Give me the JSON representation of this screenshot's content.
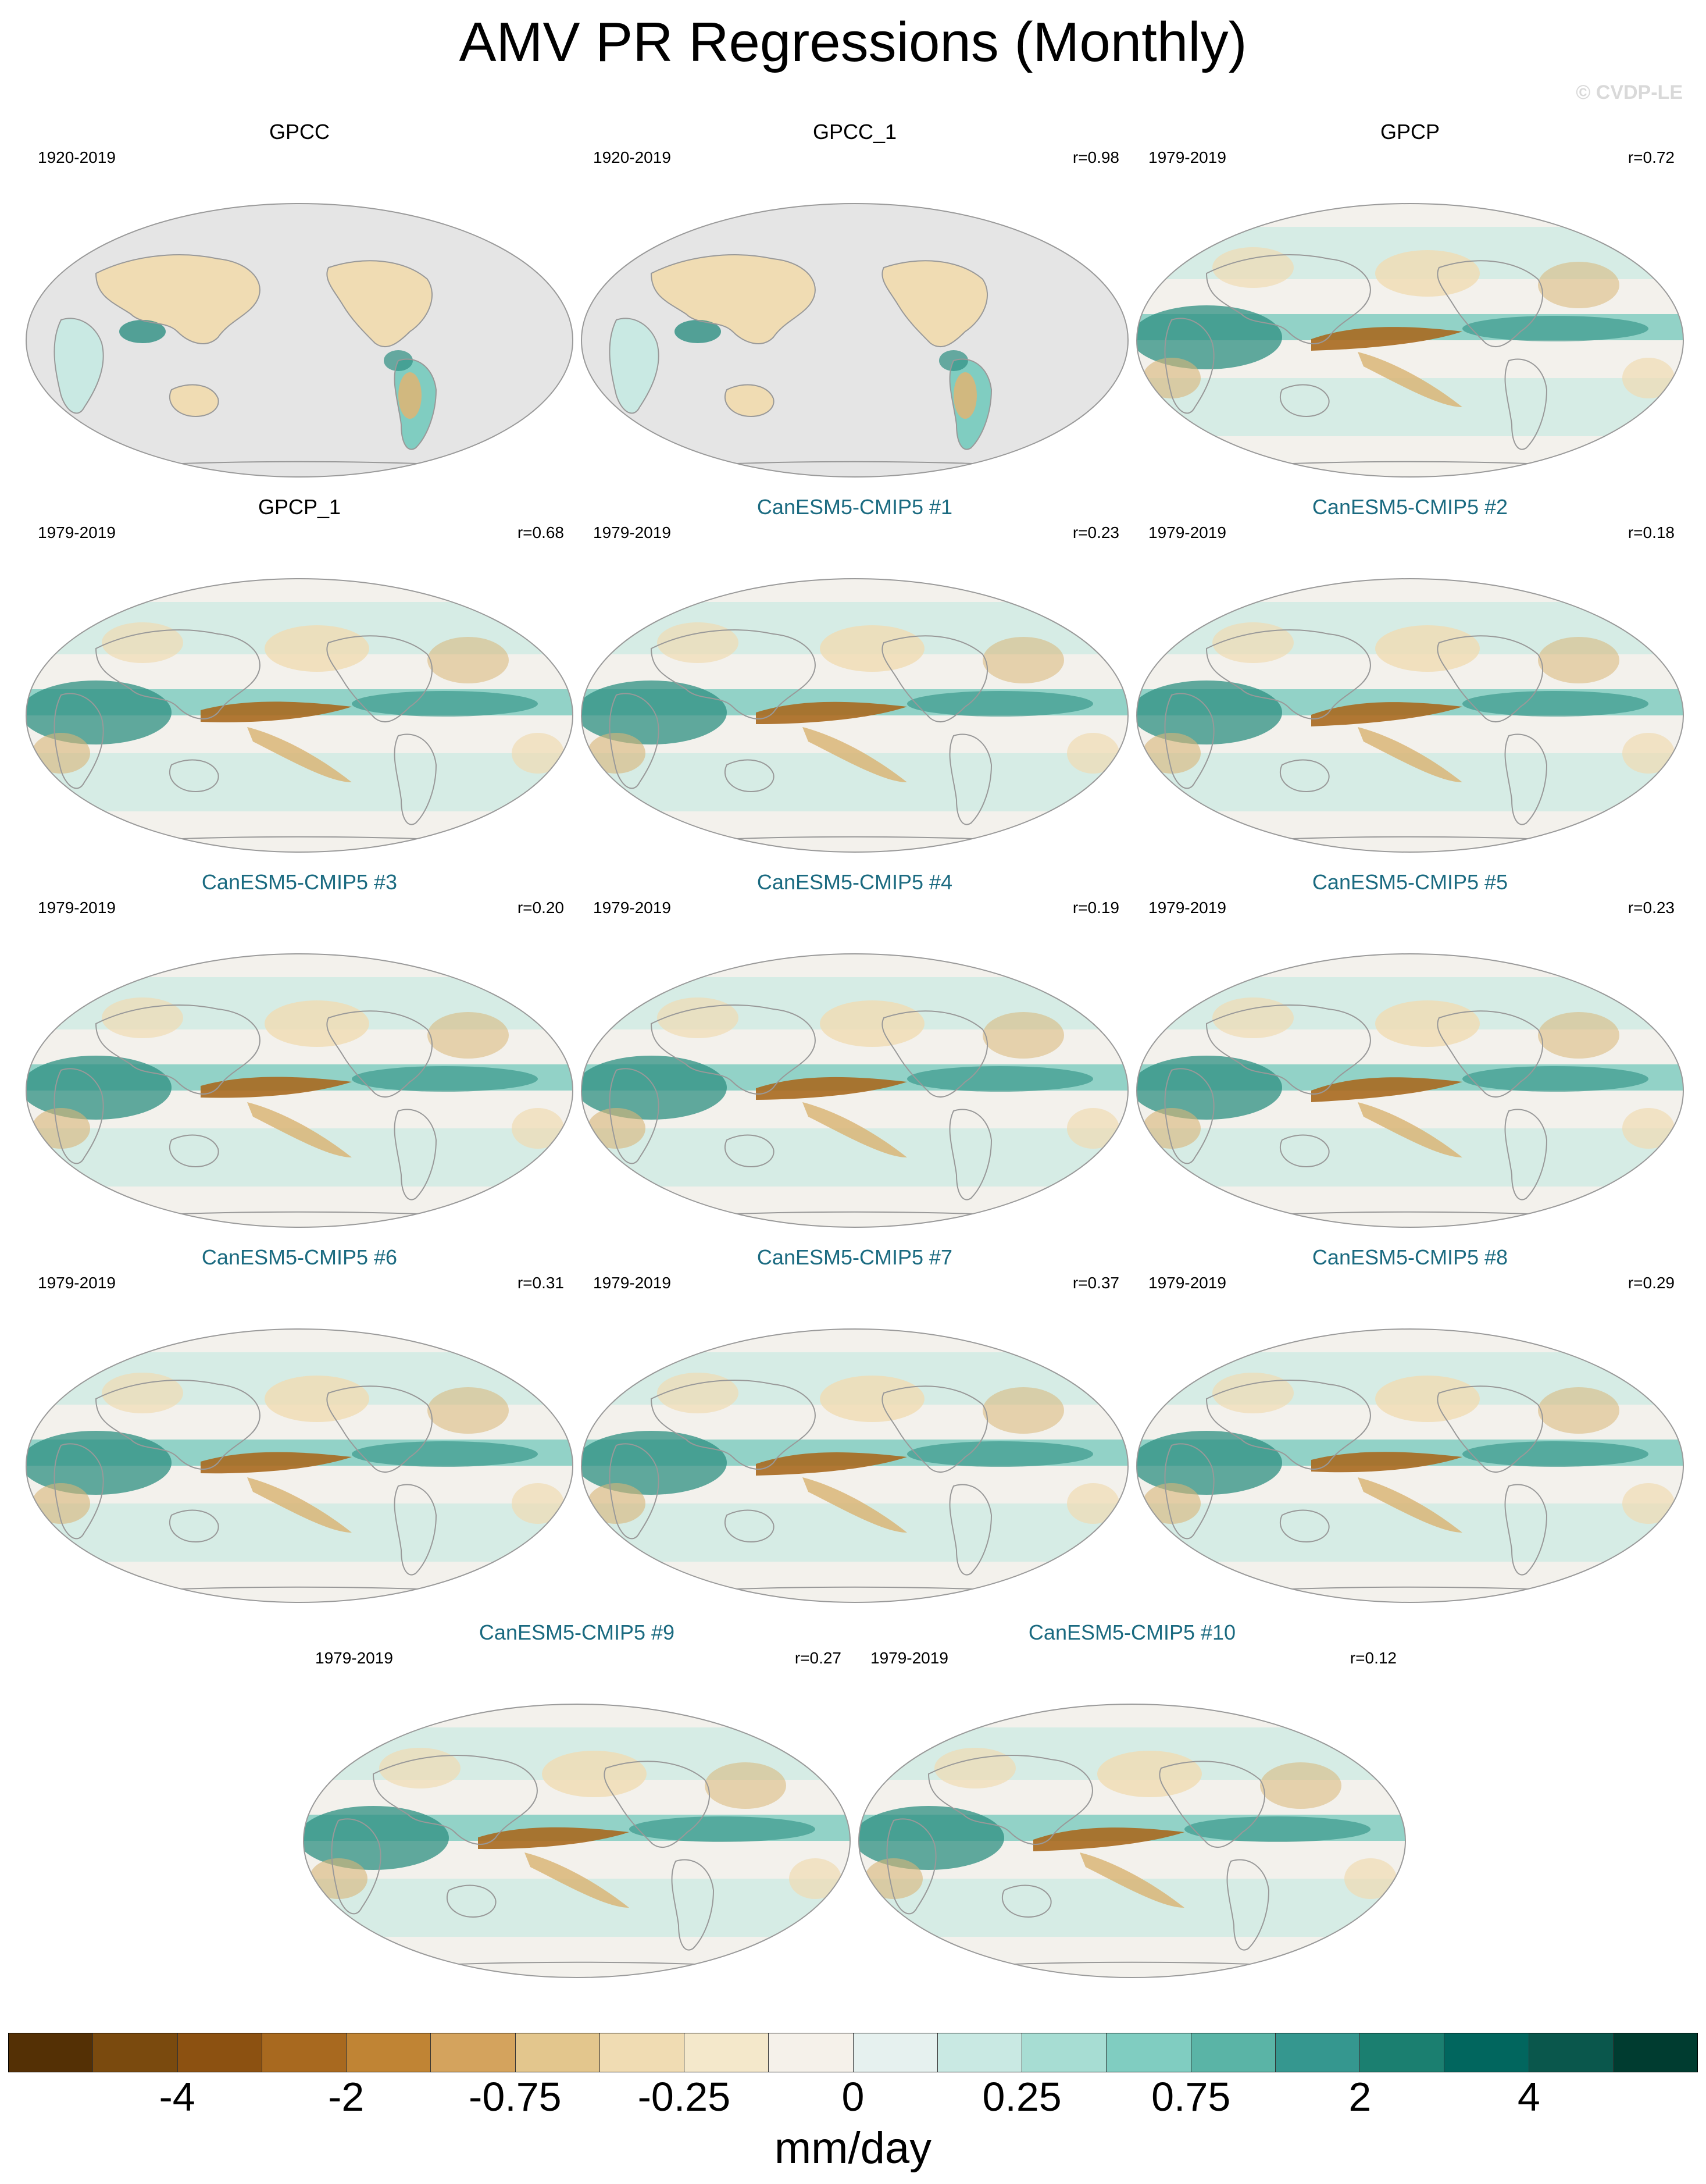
{
  "title": "AMV PR Regressions (Monthly)",
  "watermark": "© CVDP-LE",
  "panels": [
    {
      "title": "GPCC",
      "period": "1920-2019",
      "r": "",
      "type": "obs",
      "coverage": "land"
    },
    {
      "title": "GPCC_1",
      "period": "1920-2019",
      "r": "r=0.98",
      "type": "obs",
      "coverage": "land"
    },
    {
      "title": "GPCP",
      "period": "1979-2019",
      "r": "r=0.72",
      "type": "obs",
      "coverage": "global"
    },
    {
      "title": "GPCP_1",
      "period": "1979-2019",
      "r": "r=0.68",
      "type": "obs",
      "coverage": "global"
    },
    {
      "title": "CanESM5-CMIP5 #1",
      "period": "1979-2019",
      "r": "r=0.23",
      "type": "model",
      "coverage": "global"
    },
    {
      "title": "CanESM5-CMIP5 #2",
      "period": "1979-2019",
      "r": "r=0.18",
      "type": "model",
      "coverage": "global"
    },
    {
      "title": "CanESM5-CMIP5 #3",
      "period": "1979-2019",
      "r": "r=0.20",
      "type": "model",
      "coverage": "global"
    },
    {
      "title": "CanESM5-CMIP5 #4",
      "period": "1979-2019",
      "r": "r=0.19",
      "type": "model",
      "coverage": "global"
    },
    {
      "title": "CanESM5-CMIP5 #5",
      "period": "1979-2019",
      "r": "r=0.23",
      "type": "model",
      "coverage": "global"
    },
    {
      "title": "CanESM5-CMIP5 #6",
      "period": "1979-2019",
      "r": "r=0.31",
      "type": "model",
      "coverage": "global"
    },
    {
      "title": "CanESM5-CMIP5 #7",
      "period": "1979-2019",
      "r": "r=0.37",
      "type": "model",
      "coverage": "global"
    },
    {
      "title": "CanESM5-CMIP5 #8",
      "period": "1979-2019",
      "r": "r=0.29",
      "type": "model",
      "coverage": "global"
    },
    {
      "title": "CanESM5-CMIP5 #9",
      "period": "1979-2019",
      "r": "r=0.27",
      "type": "model",
      "coverage": "global"
    },
    {
      "title": "CanESM5-CMIP5 #10",
      "period": "1979-2019",
      "r": "r=0.12",
      "type": "model",
      "coverage": "global"
    }
  ],
  "colorbar": {
    "colors": [
      "#543005",
      "#7a4a0e",
      "#8c5111",
      "#a8691f",
      "#c08434",
      "#d4a35d",
      "#e3c68d",
      "#f0dcb3",
      "#f4e8cb",
      "#f5f1ea",
      "#e6f1ef",
      "#c9e9e3",
      "#a7ddd3",
      "#80cdc1",
      "#5ab4a6",
      "#35978f",
      "#1b7f70",
      "#01665e",
      "#0a574c",
      "#003c30"
    ],
    "labels": [
      "-4",
      "-2",
      "-0.75",
      "-0.25",
      "0",
      "0.25",
      "0.75",
      "2",
      "4"
    ],
    "units": "mm/day"
  },
  "map_colors": {
    "land_missing": "#e5e5e5",
    "coast": "#999999",
    "dry_strong": "#a8691f",
    "dry": "#d9b678",
    "dry_light": "#f0dcb3",
    "neutral": "#f3f1ec",
    "wet_light": "#c9e9e3",
    "wet": "#80cdc1",
    "wet_strong": "#2d8f82"
  }
}
